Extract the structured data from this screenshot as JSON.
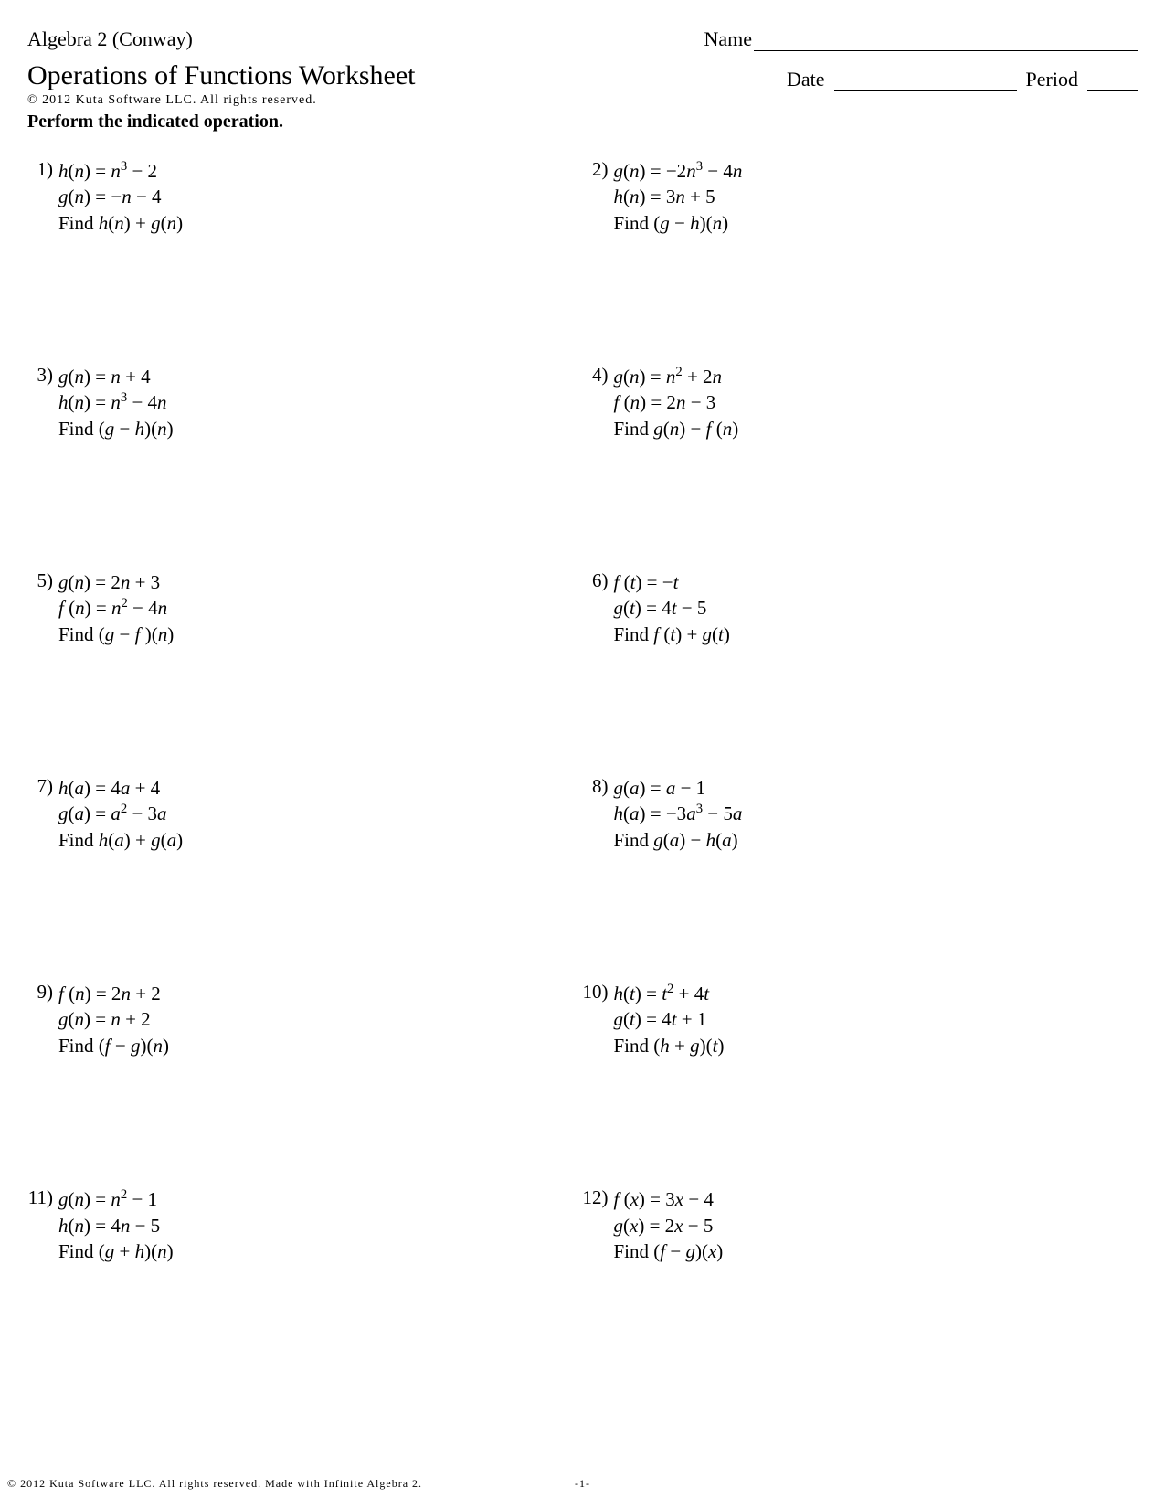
{
  "header": {
    "course": "Algebra 2 (Conway)",
    "name_label": "Name",
    "title": "Operations of Functions Worksheet",
    "date_label": "Date",
    "period_label": "Period",
    "copyright": "© 2012 Kuta Software LLC. All rights reserved.",
    "instruction": "Perform the indicated operation."
  },
  "problems": [
    {
      "num": "1)",
      "line1_a": "h",
      "line1_b": "(",
      "line1_c": "n",
      "line1_d": ") = ",
      "line1_e": "n",
      "line1_sup": "3",
      "line1_f": " − 2",
      "line2_a": "g",
      "line2_b": "(",
      "line2_c": "n",
      "line2_d": ") = −",
      "line2_e": "n",
      "line2_f": " − 4",
      "line3_a": "Find ",
      "line3_b": "h",
      "line3_c": "(",
      "line3_d": "n",
      "line3_e": ") + ",
      "line3_f": "g",
      "line3_g": "(",
      "line3_h": "n",
      "line3_i": ")"
    },
    {
      "num": "2)",
      "line1_a": "g",
      "line1_b": "(",
      "line1_c": "n",
      "line1_d": ") = −2",
      "line1_e": "n",
      "line1_sup": "3",
      "line1_f": " − 4",
      "line1_g": "n",
      "line2_a": "h",
      "line2_b": "(",
      "line2_c": "n",
      "line2_d": ") = 3",
      "line2_e": "n",
      "line2_f": " + 5",
      "line3_a": "Find (",
      "line3_b": "g",
      "line3_c": " − ",
      "line3_d": "h",
      "line3_e": ")(",
      "line3_f": "n",
      "line3_g": ")"
    },
    {
      "num": "3)",
      "line1_a": "g",
      "line1_b": "(",
      "line1_c": "n",
      "line1_d": ") = ",
      "line1_e": "n",
      "line1_f": " + 4",
      "line2_a": "h",
      "line2_b": "(",
      "line2_c": "n",
      "line2_d": ") = ",
      "line2_e": "n",
      "line2_sup": "3",
      "line2_f": " − 4",
      "line2_g": "n",
      "line3_a": "Find (",
      "line3_b": "g",
      "line3_c": " − ",
      "line3_d": "h",
      "line3_e": ")(",
      "line3_f": "n",
      "line3_g": ")"
    },
    {
      "num": "4)",
      "line1_a": "g",
      "line1_b": "(",
      "line1_c": "n",
      "line1_d": ") = ",
      "line1_e": "n",
      "line1_sup": "2",
      "line1_f": " + 2",
      "line1_g": "n",
      "line2_a": "f ",
      "line2_b": "(",
      "line2_c": "n",
      "line2_d": ") = 2",
      "line2_e": "n",
      "line2_f": " − 3",
      "line3_a": "Find ",
      "line3_b": "g",
      "line3_c": "(",
      "line3_d": "n",
      "line3_e": ") − ",
      "line3_f": "f ",
      "line3_g": "(",
      "line3_h": "n",
      "line3_i": ")"
    },
    {
      "num": "5)",
      "line1_a": "g",
      "line1_b": "(",
      "line1_c": "n",
      "line1_d": ") = 2",
      "line1_e": "n",
      "line1_f": " + 3",
      "line2_a": "f ",
      "line2_b": "(",
      "line2_c": "n",
      "line2_d": ") = ",
      "line2_e": "n",
      "line2_sup": "2",
      "line2_f": " − 4",
      "line2_g": "n",
      "line3_a": "Find (",
      "line3_b": "g",
      "line3_c": " − ",
      "line3_d": "f ",
      "line3_e": ")(",
      "line3_f": "n",
      "line3_g": ")"
    },
    {
      "num": "6)",
      "line1_a": "f ",
      "line1_b": "(",
      "line1_c": "t",
      "line1_d": ") = −",
      "line1_e": "t",
      "line2_a": "g",
      "line2_b": "(",
      "line2_c": "t",
      "line2_d": ") = 4",
      "line2_e": "t",
      "line2_f": " − 5",
      "line3_a": "Find ",
      "line3_b": "f ",
      "line3_c": "(",
      "line3_d": "t",
      "line3_e": ") + ",
      "line3_f": "g",
      "line3_g": "(",
      "line3_h": "t",
      "line3_i": ")"
    },
    {
      "num": "7)",
      "line1_a": "h",
      "line1_b": "(",
      "line1_c": "a",
      "line1_d": ") = 4",
      "line1_e": "a",
      "line1_f": " + 4",
      "line2_a": "g",
      "line2_b": "(",
      "line2_c": "a",
      "line2_d": ") = ",
      "line2_e": "a",
      "line2_sup": "2",
      "line2_f": " − 3",
      "line2_g": "a",
      "line3_a": "Find ",
      "line3_b": "h",
      "line3_c": "(",
      "line3_d": "a",
      "line3_e": ") + ",
      "line3_f": "g",
      "line3_g": "(",
      "line3_h": "a",
      "line3_i": ")"
    },
    {
      "num": "8)",
      "line1_a": "g",
      "line1_b": "(",
      "line1_c": "a",
      "line1_d": ") = ",
      "line1_e": "a",
      "line1_f": " − 1",
      "line2_a": "h",
      "line2_b": "(",
      "line2_c": "a",
      "line2_d": ") = −3",
      "line2_e": "a",
      "line2_sup": "3",
      "line2_f": " − 5",
      "line2_g": "a",
      "line3_a": "Find ",
      "line3_b": "g",
      "line3_c": "(",
      "line3_d": "a",
      "line3_e": ") − ",
      "line3_f": "h",
      "line3_g": "(",
      "line3_h": "a",
      "line3_i": ")"
    },
    {
      "num": "9)",
      "line1_a": "f ",
      "line1_b": "(",
      "line1_c": "n",
      "line1_d": ") = 2",
      "line1_e": "n",
      "line1_f": " + 2",
      "line2_a": "g",
      "line2_b": "(",
      "line2_c": "n",
      "line2_d": ") = ",
      "line2_e": "n",
      "line2_f": " + 2",
      "line3_a": "Find (",
      "line3_b": "f ",
      "line3_c": " − ",
      "line3_d": "g",
      "line3_e": ")(",
      "line3_f": "n",
      "line3_g": ")"
    },
    {
      "num": "10)",
      "line1_a": "h",
      "line1_b": "(",
      "line1_c": "t",
      "line1_d": ") = ",
      "line1_e": "t",
      "line1_sup": "2",
      "line1_f": " + 4",
      "line1_g": "t",
      "line2_a": "g",
      "line2_b": "(",
      "line2_c": "t",
      "line2_d": ") = 4",
      "line2_e": "t",
      "line2_f": " + 1",
      "line3_a": "Find (",
      "line3_b": "h",
      "line3_c": " + ",
      "line3_d": "g",
      "line3_e": ")(",
      "line3_f": "t",
      "line3_g": ")"
    },
    {
      "num": "11)",
      "line1_a": "g",
      "line1_b": "(",
      "line1_c": "n",
      "line1_d": ") = ",
      "line1_e": "n",
      "line1_sup": "2",
      "line1_f": " − 1",
      "line2_a": "h",
      "line2_b": "(",
      "line2_c": "n",
      "line2_d": ") = 4",
      "line2_e": "n",
      "line2_f": " − 5",
      "line3_a": "Find (",
      "line3_b": "g",
      "line3_c": " + ",
      "line3_d": "h",
      "line3_e": ")(",
      "line3_f": "n",
      "line3_g": ")"
    },
    {
      "num": "12)",
      "line1_a": "f ",
      "line1_b": "(",
      "line1_c": "x",
      "line1_d": ") = 3",
      "line1_e": "x",
      "line1_f": " − 4",
      "line2_a": "g",
      "line2_b": "(",
      "line2_c": "x",
      "line2_d": ") = 2",
      "line2_e": "x",
      "line2_f": " − 5",
      "line3_a": "Find (",
      "line3_b": "f ",
      "line3_c": " − ",
      "line3_d": "g",
      "line3_e": ")(",
      "line3_f": "x",
      "line3_g": ")"
    }
  ],
  "footer": {
    "copyright": "© 2012 Kuta Software LLC. All rights reserved. Made with Infinite Algebra 2.",
    "page": "-1-"
  }
}
